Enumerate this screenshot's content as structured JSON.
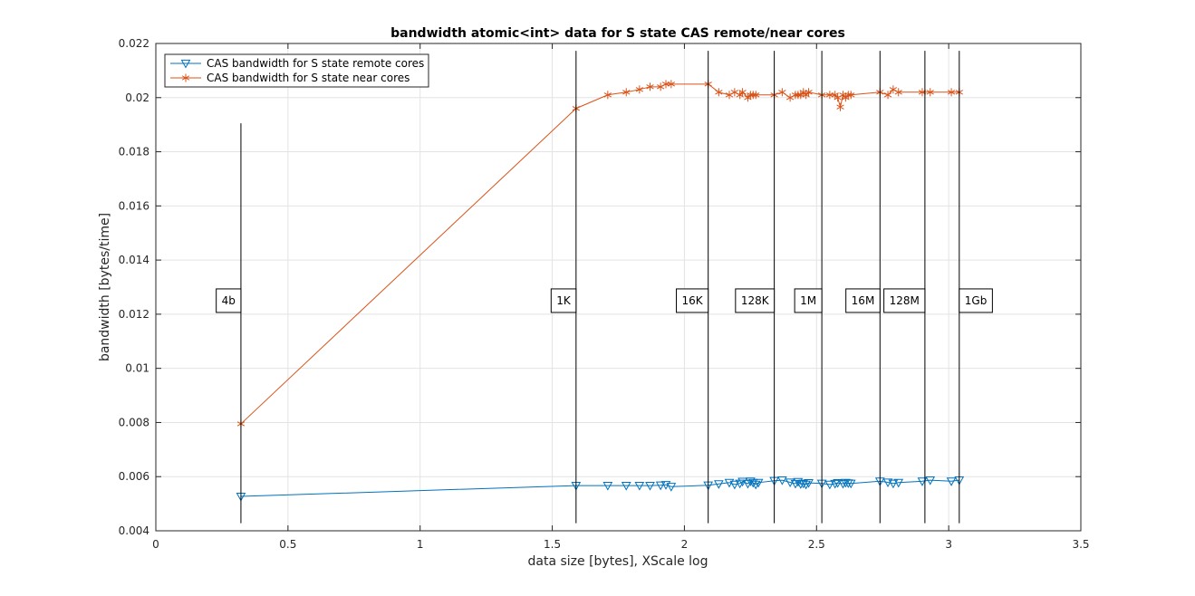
{
  "chart_data": {
    "type": "line",
    "title": "bandwidth atomic<int> data for S state CAS remote/near cores",
    "xlabel": "data size [bytes], XScale log",
    "ylabel": "bandwidth [bytes/time]",
    "xlim": [
      0,
      3.5
    ],
    "ylim": [
      0.004,
      0.022
    ],
    "xticks": [
      0,
      0.5,
      1,
      1.5,
      2,
      2.5,
      3,
      3.5
    ],
    "xtick_labels": [
      "0",
      "0.5",
      "1",
      "1.5",
      "2",
      "2.5",
      "3",
      "3.5"
    ],
    "yticks": [
      0.004,
      0.006,
      0.008,
      0.01,
      0.012,
      0.014,
      0.016,
      0.018,
      0.02,
      0.022
    ],
    "ytick_labels": [
      "0.004",
      "0.006",
      "0.008",
      "0.01",
      "0.012",
      "0.014",
      "0.016",
      "0.018",
      "0.02",
      "0.022"
    ],
    "grid": true,
    "legend_position": "top-left",
    "series": [
      {
        "name": "CAS bandwidth for S state remote cores",
        "color": "#0072BD",
        "marker": "triangle-down",
        "x": [
          0.322,
          1.59,
          1.71,
          1.78,
          1.83,
          1.87,
          1.91,
          1.93,
          1.95,
          2.09,
          2.13,
          2.17,
          2.19,
          2.21,
          2.22,
          2.24,
          2.25,
          2.26,
          2.27,
          2.28,
          2.34,
          2.37,
          2.4,
          2.42,
          2.43,
          2.44,
          2.45,
          2.46,
          2.47,
          2.52,
          2.55,
          2.57,
          2.58,
          2.6,
          2.61,
          2.62,
          2.63,
          2.74,
          2.77,
          2.79,
          2.81,
          2.9,
          2.93,
          3.01,
          3.04
        ],
        "y": [
          0.00527,
          0.00567,
          0.00567,
          0.00567,
          0.00567,
          0.00567,
          0.00568,
          0.0057,
          0.00563,
          0.00568,
          0.00573,
          0.00578,
          0.00571,
          0.00575,
          0.00582,
          0.00574,
          0.00583,
          0.00578,
          0.00571,
          0.00578,
          0.00585,
          0.00587,
          0.00579,
          0.00574,
          0.00581,
          0.00573,
          0.00575,
          0.00571,
          0.00577,
          0.00575,
          0.00571,
          0.00574,
          0.00577,
          0.00574,
          0.00578,
          0.00576,
          0.00575,
          0.00583,
          0.00579,
          0.00575,
          0.00578,
          0.00583,
          0.00587,
          0.00583,
          0.00587
        ]
      },
      {
        "name": "CAS bandwidth for S state near cores",
        "color": "#D95319",
        "marker": "asterisk",
        "x": [
          0.322,
          1.59,
          1.71,
          1.78,
          1.83,
          1.87,
          1.91,
          1.93,
          1.95,
          2.09,
          2.13,
          2.17,
          2.19,
          2.21,
          2.22,
          2.24,
          2.25,
          2.26,
          2.27,
          2.34,
          2.37,
          2.4,
          2.42,
          2.43,
          2.44,
          2.45,
          2.46,
          2.47,
          2.52,
          2.55,
          2.57,
          2.58,
          2.59,
          2.6,
          2.61,
          2.62,
          2.63,
          2.74,
          2.77,
          2.79,
          2.81,
          2.9,
          2.93,
          3.01,
          3.04
        ],
        "y": [
          0.00795,
          0.0196,
          0.0201,
          0.0202,
          0.0203,
          0.0204,
          0.0204,
          0.0205,
          0.0205,
          0.0205,
          0.0202,
          0.0201,
          0.0202,
          0.0201,
          0.0202,
          0.02,
          0.0201,
          0.0201,
          0.0201,
          0.0201,
          0.0202,
          0.02,
          0.0201,
          0.0201,
          0.0201,
          0.0202,
          0.0201,
          0.0202,
          0.0201,
          0.0201,
          0.0201,
          0.02,
          0.01965,
          0.0201,
          0.02,
          0.0201,
          0.0201,
          0.0202,
          0.0201,
          0.0203,
          0.0202,
          0.0202,
          0.0202,
          0.0202,
          0.0202
        ]
      }
    ],
    "annotations": [
      {
        "label": "4b",
        "x": 0.322,
        "y_top": 0.01905,
        "y_bottom": 0.00428
      },
      {
        "label": "1K",
        "x": 1.59,
        "y_top": 0.02173,
        "y_bottom": 0.00428
      },
      {
        "label": "16K",
        "x": 2.09,
        "y_top": 0.02173,
        "y_bottom": 0.00428
      },
      {
        "label": "128K",
        "x": 2.34,
        "y_top": 0.02173,
        "y_bottom": 0.00428
      },
      {
        "label": "1M",
        "x": 2.52,
        "y_top": 0.02173,
        "y_bottom": 0.00428
      },
      {
        "label": "16M",
        "x": 2.74,
        "y_top": 0.02173,
        "y_bottom": 0.00428
      },
      {
        "label": "128M",
        "x": 2.91,
        "y_top": 0.02173,
        "y_bottom": 0.00428
      },
      {
        "label": "1Gb",
        "x": 3.04,
        "y_top": 0.02173,
        "y_bottom": 0.00428,
        "label_side": "right"
      }
    ],
    "annotation_label_y": 0.0125
  }
}
